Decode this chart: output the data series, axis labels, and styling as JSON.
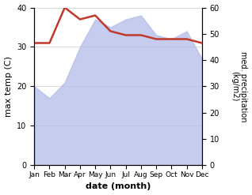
{
  "months": [
    "Jan",
    "Feb",
    "Mar",
    "Apr",
    "May",
    "Jun",
    "Jul",
    "Aug",
    "Sep",
    "Oct",
    "Nov",
    "Dec"
  ],
  "temp_max": [
    31,
    31,
    40,
    37,
    38,
    34,
    33,
    33,
    32,
    32,
    32,
    31
  ],
  "precipitation": [
    20,
    17,
    21,
    30,
    37,
    35,
    37,
    38,
    33,
    32,
    34,
    27
  ],
  "temp_ylim": [
    0,
    40
  ],
  "precip_ylim": [
    0,
    60
  ],
  "temp_color": "#c0392b",
  "precip_fill_color": "#b3bce8",
  "precip_fill_alpha": 0.75,
  "xlabel": "date (month)",
  "ylabel_left": "max temp (C)",
  "ylabel_right": "med. precipitation\n(kg/m2)",
  "bg_color": "#ffffff",
  "grid_color": "#cccccc",
  "xlabel_fontsize": 8,
  "ylabel_fontsize": 8
}
